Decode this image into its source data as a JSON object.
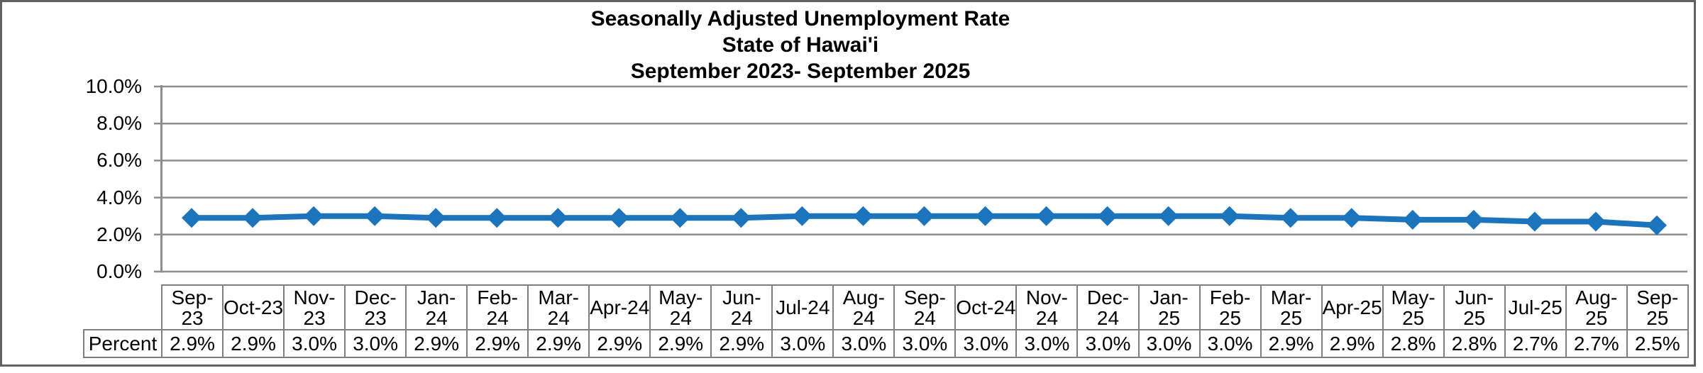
{
  "title": {
    "line1": "Seasonally Adjusted Unemployment Rate",
    "line2": "State of Hawai'i",
    "line3": "September 2023- September 2025"
  },
  "y_axis": {
    "tick_labels": [
      "10.0%",
      "8.0%",
      "6.0%",
      "4.0%",
      "2.0%",
      "0.0%"
    ]
  },
  "table": {
    "row_header": "Percent",
    "month_labels": [
      "Sep-\n23",
      "Oct-23",
      "Nov-\n23",
      "Dec-\n23",
      "Jan-24",
      "Feb-\n24",
      "Mar-\n24",
      "Apr-24",
      "May-\n24",
      "Jun-24",
      "Jul-24",
      "Aug-\n24",
      "Sep-\n24",
      "Oct-24",
      "Nov-\n24",
      "Dec-\n24",
      "Jan-25",
      "Feb-\n25",
      "Mar-\n25",
      "Apr-25",
      "May-\n25",
      "Jun-25",
      "Jul-25",
      "Aug-\n25",
      "Sep-\n25"
    ],
    "value_labels": [
      "2.9%",
      "2.9%",
      "3.0%",
      "3.0%",
      "2.9%",
      "2.9%",
      "2.9%",
      "2.9%",
      "2.9%",
      "2.9%",
      "3.0%",
      "3.0%",
      "3.0%",
      "3.0%",
      "3.0%",
      "3.0%",
      "3.0%",
      "3.0%",
      "2.9%",
      "2.9%",
      "2.8%",
      "2.8%",
      "2.7%",
      "2.7%",
      "2.5%"
    ]
  },
  "colors": {
    "series_line": "#1B74BC",
    "gridline": "#8E8E8E",
    "axis_line": "#8E8E8E",
    "table_border": "#7F7F7F",
    "frame_border": "#616161",
    "text": "#000000",
    "background": "#FFFFFF"
  },
  "chart_data": {
    "type": "line",
    "title": "Seasonally Adjusted Unemployment Rate",
    "subtitle": "State of Hawai'i",
    "subtitle2": "September 2023- September 2025",
    "categories": [
      "Sep-23",
      "Oct-23",
      "Nov-23",
      "Dec-23",
      "Jan-24",
      "Feb-24",
      "Mar-24",
      "Apr-24",
      "May-24",
      "Jun-24",
      "Jul-24",
      "Aug-24",
      "Sep-24",
      "Oct-24",
      "Nov-24",
      "Dec-24",
      "Jan-25",
      "Feb-25",
      "Mar-25",
      "Apr-25",
      "May-25",
      "Jun-25",
      "Jul-25",
      "Aug-25",
      "Sep-25"
    ],
    "series": [
      {
        "name": "Percent",
        "values": [
          2.9,
          2.9,
          3.0,
          3.0,
          2.9,
          2.9,
          2.9,
          2.9,
          2.9,
          2.9,
          3.0,
          3.0,
          3.0,
          3.0,
          3.0,
          3.0,
          3.0,
          3.0,
          2.9,
          2.9,
          2.8,
          2.8,
          2.7,
          2.7,
          2.5
        ]
      }
    ],
    "xlabel": "",
    "ylabel": "",
    "ylim": [
      0.0,
      10.0
    ],
    "ytick_step": 2.0,
    "ytick_format": "percent_one_decimal",
    "grid": true,
    "legend_position": "none",
    "marker": "diamond",
    "data_table_shown": true
  }
}
